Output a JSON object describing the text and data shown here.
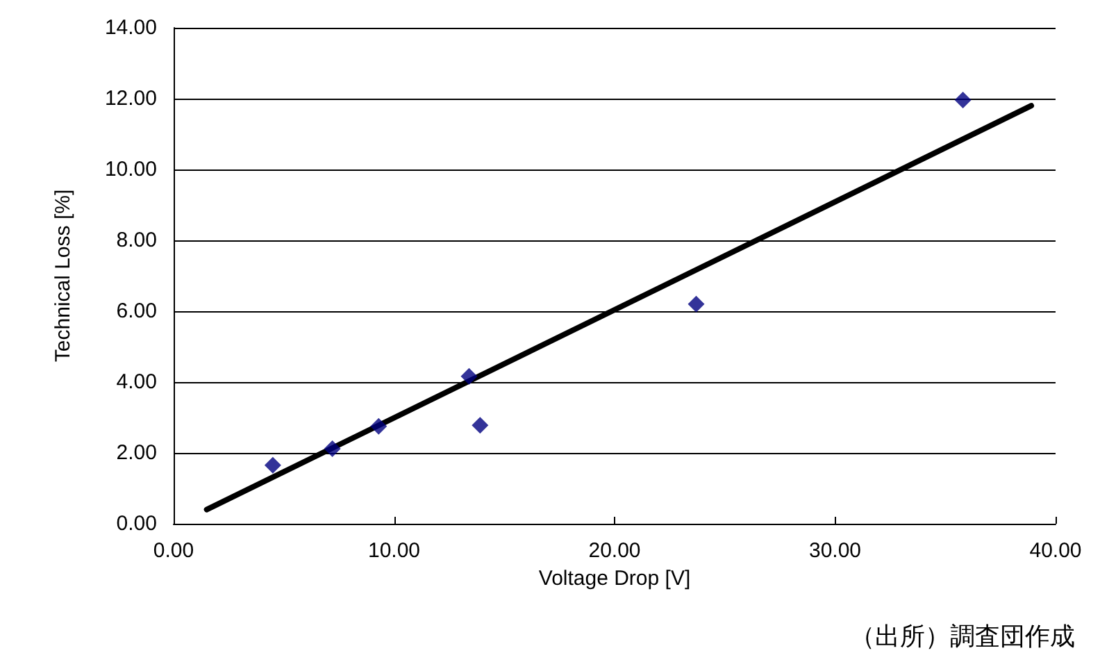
{
  "chart_data": {
    "type": "scatter",
    "xlabel": "Voltage Drop [V]",
    "ylabel": "Technical Loss [%]",
    "annotations": [
      "（出所）調査団作成"
    ],
    "series": [
      {
        "color": "#000080",
        "marker": "diamond",
        "x": [
          4.5,
          7.2,
          9.3,
          13.4,
          13.9,
          23.7,
          35.8
        ],
        "values": [
          1.65,
          2.12,
          2.75,
          4.16,
          2.78,
          6.2,
          11.96
        ]
      },
      {
        "type": "line",
        "color": "#000000",
        "marker": "none",
        "x": [
          1.5,
          38.9
        ],
        "values": [
          0.4,
          11.8
        ]
      }
    ],
    "xlim": [
      0,
      40
    ],
    "ylim": [
      0,
      14
    ],
    "xticks": [
      {
        "value": 0,
        "label": "0.00"
      },
      {
        "value": 10,
        "label": "10.00"
      },
      {
        "value": 20,
        "label": "20.00"
      },
      {
        "value": 30,
        "label": "30.00"
      },
      {
        "value": 40,
        "label": "40.00"
      }
    ],
    "yticks": [
      {
        "value": 0,
        "label": "0.00"
      },
      {
        "value": 2,
        "label": "2.00"
      },
      {
        "value": 4,
        "label": "4.00"
      },
      {
        "value": 6,
        "label": "6.00"
      },
      {
        "value": 8,
        "label": "8.00"
      },
      {
        "value": 10,
        "label": "10.00"
      },
      {
        "value": 12,
        "label": "12.00"
      },
      {
        "value": 14,
        "label": "14.00"
      }
    ],
    "grid": "y"
  }
}
